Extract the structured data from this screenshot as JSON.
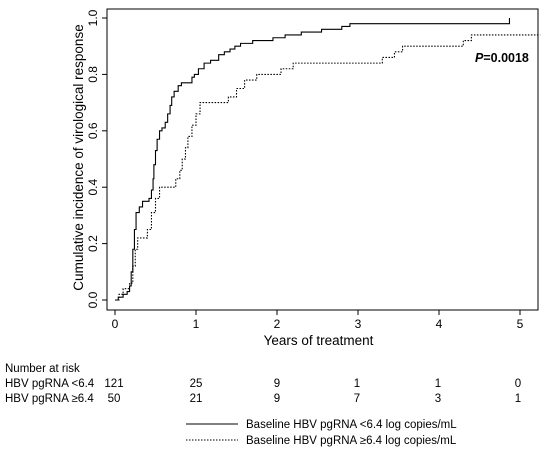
{
  "chart_data": {
    "type": "line",
    "xlabel": "Years of treatment",
    "ylabel": "Cumulative incidence of virological response",
    "xlim": [
      0,
      5.25
    ],
    "ylim": [
      0,
      1.0
    ],
    "x_ticks": [
      "0",
      "1",
      "2",
      "3",
      "4",
      "5"
    ],
    "y_ticks": [
      "0.0",
      "0.2",
      "0.4",
      "0.6",
      "0.8",
      "1.0"
    ],
    "annotation": {
      "p_label": "P",
      "p_value": "=0.0018"
    },
    "series": [
      {
        "name": "Baseline HBV pgRNA <6.4 log copies/mL",
        "style": "solid",
        "points": [
          [
            0.0,
            0.0
          ],
          [
            0.04,
            0.01
          ],
          [
            0.1,
            0.02
          ],
          [
            0.15,
            0.03
          ],
          [
            0.18,
            0.05
          ],
          [
            0.2,
            0.1
          ],
          [
            0.22,
            0.18
          ],
          [
            0.24,
            0.25
          ],
          [
            0.26,
            0.31
          ],
          [
            0.3,
            0.33
          ],
          [
            0.34,
            0.35
          ],
          [
            0.42,
            0.36
          ],
          [
            0.45,
            0.39
          ],
          [
            0.47,
            0.43
          ],
          [
            0.48,
            0.48
          ],
          [
            0.5,
            0.53
          ],
          [
            0.52,
            0.57
          ],
          [
            0.55,
            0.6
          ],
          [
            0.58,
            0.61
          ],
          [
            0.62,
            0.63
          ],
          [
            0.65,
            0.66
          ],
          [
            0.68,
            0.69
          ],
          [
            0.7,
            0.72
          ],
          [
            0.73,
            0.74
          ],
          [
            0.78,
            0.76
          ],
          [
            0.82,
            0.77
          ],
          [
            0.95,
            0.79
          ],
          [
            0.98,
            0.8
          ],
          [
            1.03,
            0.82
          ],
          [
            1.1,
            0.84
          ],
          [
            1.18,
            0.85
          ],
          [
            1.28,
            0.87
          ],
          [
            1.35,
            0.88
          ],
          [
            1.42,
            0.89
          ],
          [
            1.48,
            0.9
          ],
          [
            1.55,
            0.91
          ],
          [
            1.7,
            0.92
          ],
          [
            1.95,
            0.93
          ],
          [
            2.1,
            0.94
          ],
          [
            2.3,
            0.95
          ],
          [
            2.55,
            0.96
          ],
          [
            2.8,
            0.97
          ],
          [
            2.9,
            0.98
          ],
          [
            4.87,
            0.98
          ],
          [
            4.87,
            1.0
          ]
        ]
      },
      {
        "name": "Baseline HBV pgRNA ≥6.4 log copies/mL",
        "style": "dotted",
        "points": [
          [
            0.0,
            0.0
          ],
          [
            0.05,
            0.02
          ],
          [
            0.1,
            0.04
          ],
          [
            0.18,
            0.06
          ],
          [
            0.22,
            0.12
          ],
          [
            0.25,
            0.18
          ],
          [
            0.28,
            0.22
          ],
          [
            0.4,
            0.25
          ],
          [
            0.45,
            0.31
          ],
          [
            0.5,
            0.36
          ],
          [
            0.55,
            0.4
          ],
          [
            0.75,
            0.43
          ],
          [
            0.8,
            0.46
          ],
          [
            0.83,
            0.5
          ],
          [
            0.87,
            0.54
          ],
          [
            0.9,
            0.58
          ],
          [
            0.95,
            0.62
          ],
          [
            1.0,
            0.66
          ],
          [
            1.05,
            0.7
          ],
          [
            1.4,
            0.72
          ],
          [
            1.5,
            0.75
          ],
          [
            1.6,
            0.78
          ],
          [
            1.75,
            0.8
          ],
          [
            2.05,
            0.82
          ],
          [
            2.2,
            0.84
          ],
          [
            3.3,
            0.86
          ],
          [
            3.45,
            0.88
          ],
          [
            3.55,
            0.9
          ],
          [
            4.3,
            0.92
          ],
          [
            4.4,
            0.94
          ],
          [
            5.25,
            0.94
          ]
        ]
      }
    ],
    "risk_table": {
      "title": "Number at risk",
      "rows": [
        {
          "label": "HBV pgRNA <6.4",
          "values": [
            "121",
            "25",
            "9",
            "1",
            "1",
            "0"
          ]
        },
        {
          "label": "HBV pgRNA ≥6.4",
          "values": [
            "50",
            "21",
            "9",
            "7",
            "3",
            "1"
          ]
        }
      ]
    },
    "legend": {
      "position": "bottom-right"
    }
  }
}
